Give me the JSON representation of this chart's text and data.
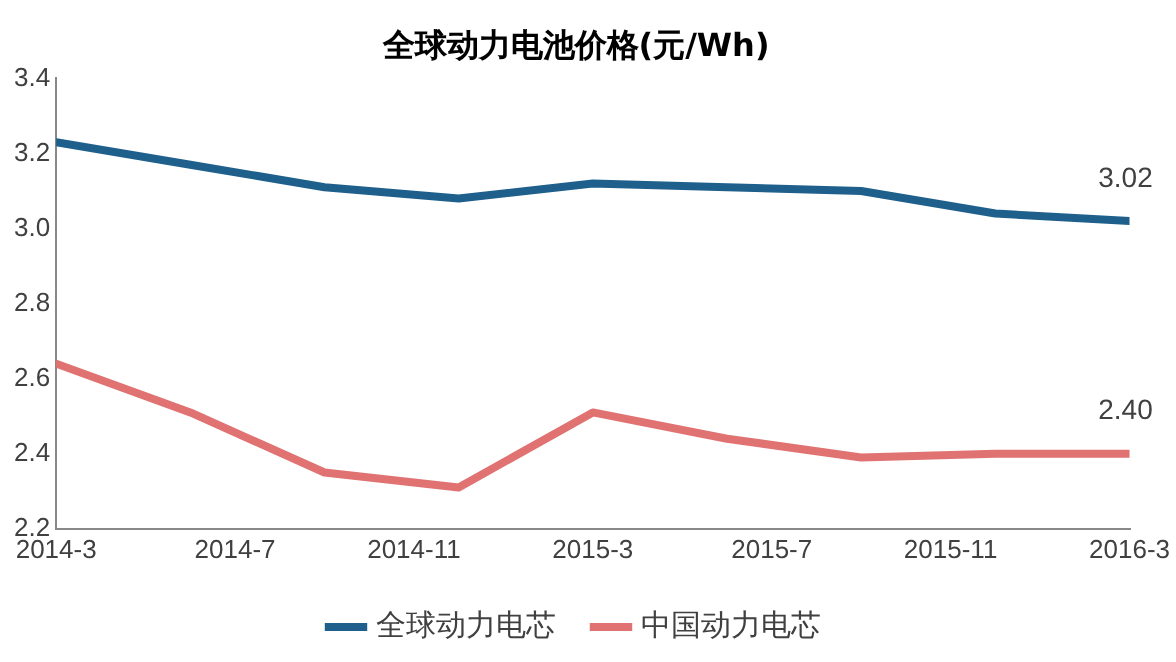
{
  "chart_data": {
    "type": "line",
    "title": "全球动力电池价格(元/Wh)",
    "x": [
      "2014-03",
      "2014-06",
      "2014-09",
      "2014-12",
      "2015-03",
      "2015-06",
      "2015-09",
      "2015-12",
      "2016-03"
    ],
    "xlim": [
      "2014-03",
      "2016-03"
    ],
    "xticks": [
      {
        "value": "2014-03",
        "label": "2014-3"
      },
      {
        "value": "2014-07",
        "label": "2014-7"
      },
      {
        "value": "2014-11",
        "label": "2014-11"
      },
      {
        "value": "2015-03",
        "label": "2015-3"
      },
      {
        "value": "2015-07",
        "label": "2015-7"
      },
      {
        "value": "2015-11",
        "label": "2015-11"
      },
      {
        "value": "2016-03",
        "label": "2016-3"
      }
    ],
    "ylim": [
      2.2,
      3.4
    ],
    "yticks": [
      2.2,
      2.4,
      2.6,
      2.8,
      {
        "value": 3,
        "label": "3.0"
      },
      3.2,
      3.4
    ],
    "series": [
      {
        "name": "全球动力电芯",
        "color": "#1f5f8b",
        "values": [
          3.23,
          3.17,
          3.11,
          3.08,
          3.12,
          3.11,
          3.1,
          3.04,
          3.02
        ],
        "value_labels": [
          null,
          null,
          null,
          null,
          null,
          null,
          null,
          null,
          "3.02"
        ]
      },
      {
        "name": "中国动力电芯",
        "color": "#e07272",
        "values": [
          2.64,
          2.51,
          2.35,
          2.31,
          2.51,
          2.44,
          2.39,
          2.4,
          2.4
        ],
        "value_labels": [
          null,
          null,
          null,
          null,
          null,
          null,
          null,
          null,
          "2.40"
        ]
      }
    ],
    "grid": false,
    "legend": "bottom",
    "marker": "none",
    "line_style": "solid"
  }
}
